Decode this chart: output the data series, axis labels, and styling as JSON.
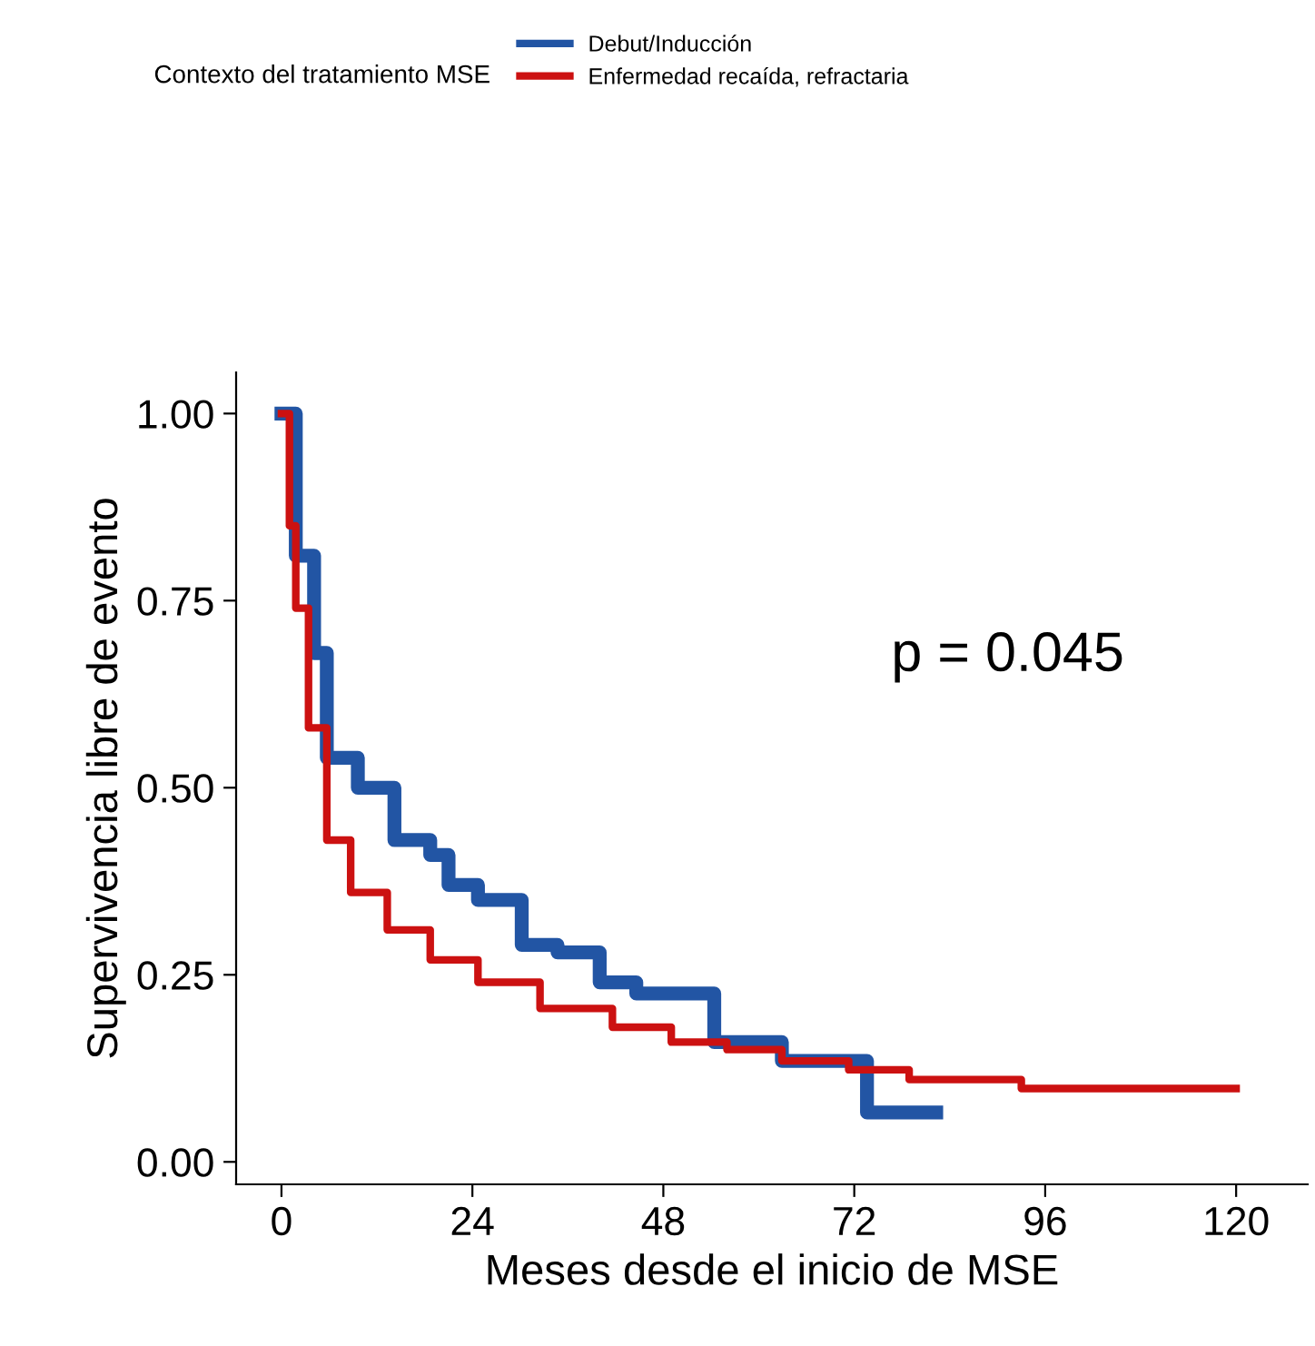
{
  "chart_data": {
    "type": "step",
    "xlabel": "Meses desde el inicio de MSE",
    "ylabel": "Supervivencia libre de evento",
    "legend_title": "Contexto del tratamiento MSE",
    "legend": "top",
    "grid": false,
    "marker": "none",
    "annotations": [
      "p = 0.045"
    ],
    "xlim": [
      -5.7,
      129
    ],
    "xticks": [
      0,
      24,
      48,
      72,
      96,
      120
    ],
    "ylim": [
      -0.03,
      1.055
    ],
    "yticks": [
      {
        "value": 0,
        "label": "0.00"
      },
      {
        "value": 0.25,
        "label": "0.25"
      },
      {
        "value": 0.5,
        "label": "0.50"
      },
      {
        "value": 0.75,
        "label": "0.75"
      },
      {
        "value": 1,
        "label": "1.00"
      }
    ],
    "series": [
      {
        "name": "Debut/Inducción",
        "color": "#2255a4",
        "x": [
          0,
          1.8,
          4.1,
          5.7,
          9.6,
          14.2,
          18.7,
          21,
          24.7,
          30.2,
          34.7,
          40,
          44.6,
          54.4,
          62.9,
          73.6,
          82.3
        ],
        "values": [
          1.0,
          0.81,
          0.68,
          0.54,
          0.5,
          0.43,
          0.41,
          0.37,
          0.35,
          0.29,
          0.28,
          0.24,
          0.225,
          0.16,
          0.135,
          0.066,
          0.066
        ]
      },
      {
        "name": "Enfermedad recaída, refractaria",
        "color": "#cc1111",
        "x": [
          0,
          1,
          1.8,
          3.4,
          5.7,
          8.7,
          13.3,
          18.7,
          24.7,
          32.5,
          41.6,
          49,
          56,
          62.9,
          71.3,
          78.9,
          93,
          120
        ],
        "values": [
          1.0,
          0.85,
          0.74,
          0.58,
          0.43,
          0.36,
          0.31,
          0.27,
          0.24,
          0.205,
          0.18,
          0.16,
          0.15,
          0.135,
          0.123,
          0.11,
          0.098,
          0.098
        ]
      }
    ]
  }
}
